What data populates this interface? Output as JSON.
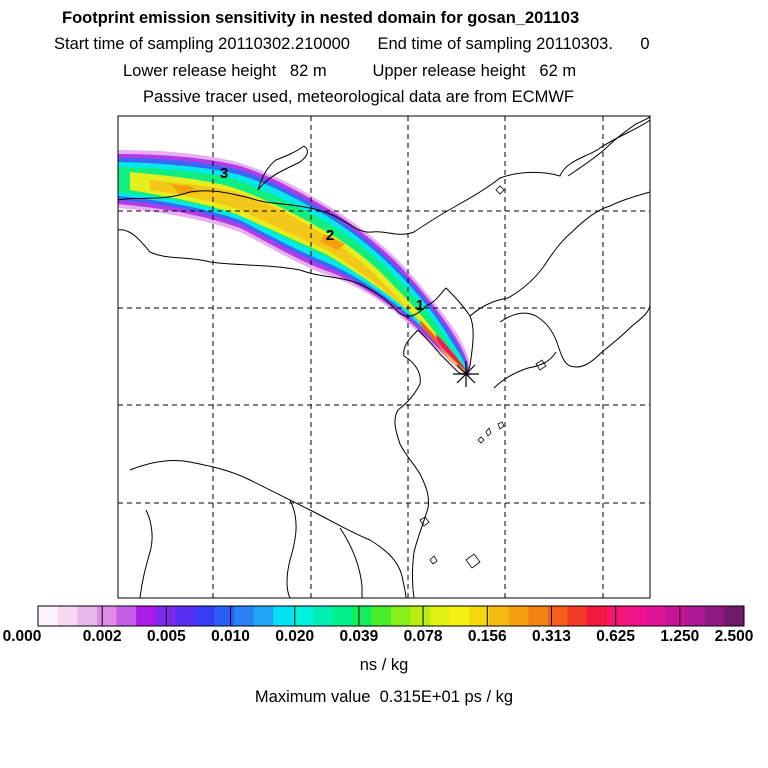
{
  "header": {
    "title": "Footprint emission sensitivity in nested domain for gosan_201103",
    "line2": "Start time of sampling 20110302.210000      End time of sampling 20110303.      0",
    "line3": "Lower release height   82 m          Upper release height   62 m",
    "line4": "Passive tracer used, meteorological data are from ECMWF"
  },
  "map": {
    "markers": [
      "3",
      "2",
      "1"
    ],
    "site_symbol": "star"
  },
  "colorbar": {
    "labels": [
      "0.000",
      "0.002",
      "0.005",
      "0.010",
      "0.020",
      "0.039",
      "0.078",
      "0.156",
      "0.313",
      "0.625",
      "1.250",
      "2.500"
    ],
    "colors": [
      "#fdf3fb",
      "#f7d9f2",
      "#eab7ea",
      "#e08be6",
      "#c65ee6",
      "#a81ee8",
      "#7f28f0",
      "#5a2ef2",
      "#3a3cf4",
      "#2a5ef4",
      "#2a82f4",
      "#1ea6f4",
      "#00e4f4",
      "#00f2e0",
      "#00f0b6",
      "#00f08c",
      "#10ee5a",
      "#48ee2a",
      "#8aee18",
      "#bbee10",
      "#e0f010",
      "#f4f010",
      "#f4d810",
      "#f4bc10",
      "#f49e10",
      "#f48210",
      "#f4601c",
      "#f23a28",
      "#f4183c",
      "#f41672",
      "#f0148c",
      "#e01496",
      "#c8149a",
      "#ae1896",
      "#901a84",
      "#701a6a"
    ],
    "unit": "ns / kg"
  },
  "footer": {
    "max_value": "Maximum value  0.315E+01 ps / kg"
  }
}
